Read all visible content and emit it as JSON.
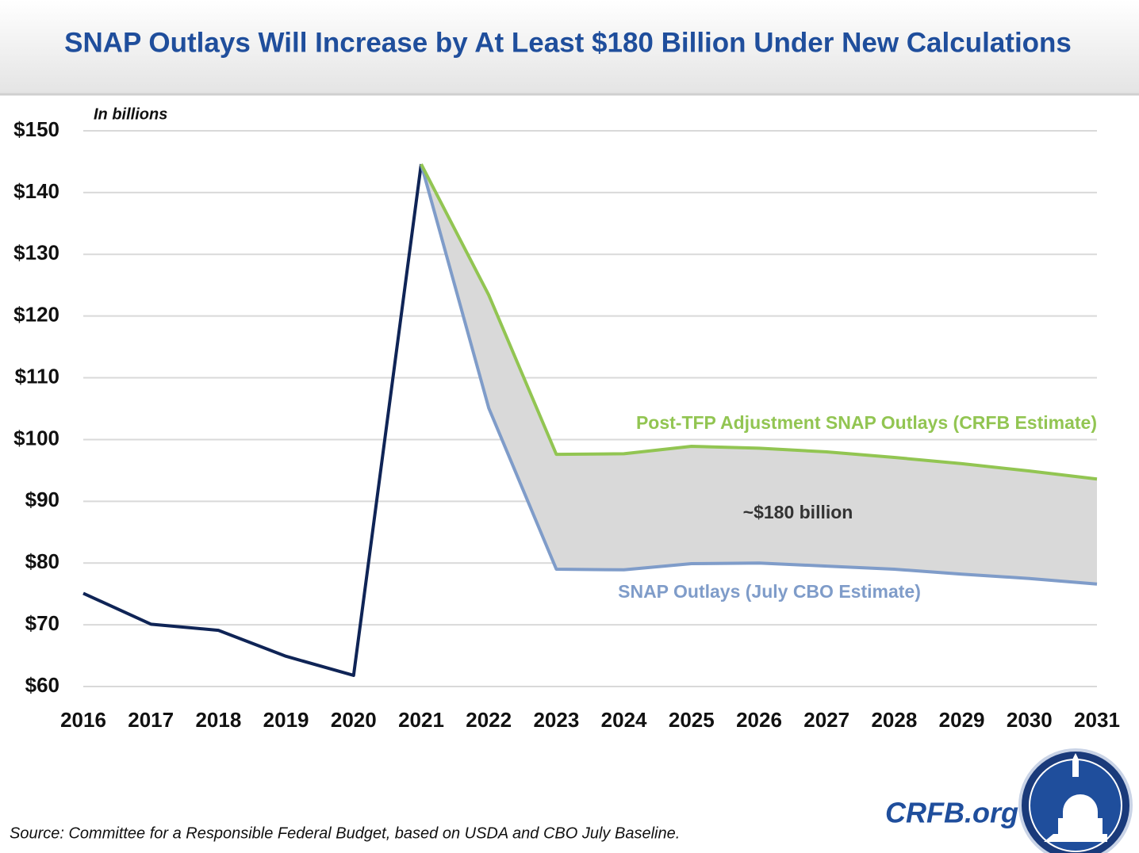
{
  "chart_data": {
    "type": "line",
    "title": "SNAP Outlays Will Increase by At Least $180 Billion Under New Calculations",
    "y_unit_label": "In billions",
    "x": [
      2016,
      2017,
      2018,
      2019,
      2020,
      2021,
      2022,
      2023,
      2024,
      2025,
      2026,
      2027,
      2028,
      2029,
      2030,
      2031
    ],
    "xlim": [
      2016,
      2031
    ],
    "xticks": [
      2016,
      2017,
      2018,
      2019,
      2020,
      2021,
      2022,
      2023,
      2024,
      2025,
      2026,
      2027,
      2028,
      2029,
      2030,
      2031
    ],
    "ylim": [
      60,
      150
    ],
    "yticks": [
      {
        "value": 60,
        "label": "$60"
      },
      {
        "value": 70,
        "label": "$70"
      },
      {
        "value": 80,
        "label": "$80"
      },
      {
        "value": 90,
        "label": "$90"
      },
      {
        "value": 100,
        "label": "$100"
      },
      {
        "value": 110,
        "label": "$110"
      },
      {
        "value": 120,
        "label": "$120"
      },
      {
        "value": 130,
        "label": "$130"
      },
      {
        "value": 140,
        "label": "$140"
      },
      {
        "value": 150,
        "label": "$150"
      }
    ],
    "grid": true,
    "series": [
      {
        "color": "#0f2456",
        "values": [
          75.1,
          70.1,
          69.1,
          64.9,
          61.8,
          144.6,
          null,
          null,
          null,
          null,
          null,
          null,
          null,
          null,
          null,
          null
        ]
      },
      {
        "name": "SNAP Outlays (July CBO Estimate)",
        "color": "#7f9cc9",
        "values": [
          null,
          null,
          null,
          null,
          null,
          144.6,
          105.1,
          79.0,
          78.9,
          79.9,
          80.0,
          79.5,
          79.0,
          78.2,
          77.5,
          76.6
        ]
      },
      {
        "name": "Post-TFP Adjustment SNAP Outlays (CRFB Estimate)",
        "color": "#92c552",
        "values": [
          null,
          null,
          null,
          null,
          null,
          144.6,
          123.4,
          97.6,
          97.7,
          98.9,
          98.6,
          98.0,
          97.1,
          96.1,
          94.9,
          93.6
        ]
      }
    ],
    "fill_between_color": "#d9d9d9",
    "annotation": "~$180 billion",
    "source": "Source: Committee for a Responsible Federal Budget, based on USDA and CBO July Baseline.",
    "brand": "CRFB.org"
  }
}
